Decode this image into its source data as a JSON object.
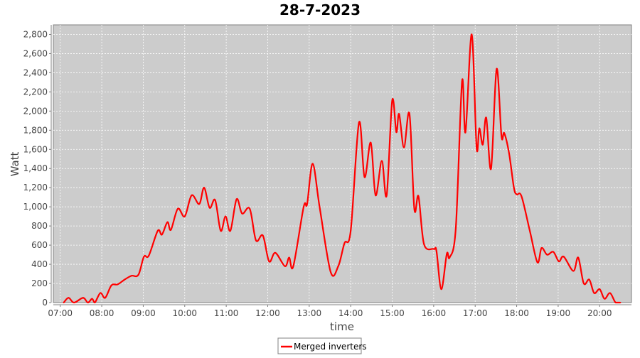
{
  "chart_data": {
    "type": "line",
    "title": "28-7-2023",
    "xlabel": "time",
    "ylabel": "Watt",
    "xlim": [
      "06:50",
      "20:46"
    ],
    "ylim": [
      0,
      2900
    ],
    "x_ticks": [
      "07:00",
      "08:00",
      "09:00",
      "10:00",
      "11:00",
      "12:00",
      "13:00",
      "14:00",
      "15:00",
      "16:00",
      "17:00",
      "18:00",
      "19:00",
      "20:00"
    ],
    "y_ticks": [
      0,
      200,
      400,
      600,
      800,
      1000,
      1200,
      1400,
      1600,
      1800,
      2000,
      2200,
      2400,
      2600,
      2800
    ],
    "y_tick_labels": [
      "0",
      "200",
      "400",
      "600",
      "800",
      "1,000",
      "1,200",
      "1,400",
      "1,600",
      "1,800",
      "2,000",
      "2,200",
      "2,400",
      "2,600",
      "2,800"
    ],
    "grid": true,
    "legend_position": "bottom",
    "background_color": "#cccccc",
    "series": [
      {
        "name": "Merged inverters",
        "color": "#ff0000",
        "points": [
          [
            "07:05",
            0
          ],
          [
            "07:12",
            50
          ],
          [
            "07:20",
            0
          ],
          [
            "07:33",
            50
          ],
          [
            "07:40",
            0
          ],
          [
            "07:46",
            40
          ],
          [
            "07:50",
            0
          ],
          [
            "07:58",
            100
          ],
          [
            "08:05",
            50
          ],
          [
            "08:14",
            180
          ],
          [
            "08:23",
            190
          ],
          [
            "08:33",
            240
          ],
          [
            "08:43",
            280
          ],
          [
            "08:53",
            290
          ],
          [
            "09:01",
            480
          ],
          [
            "09:08",
            490
          ],
          [
            "09:21",
            750
          ],
          [
            "09:27",
            710
          ],
          [
            "09:35",
            840
          ],
          [
            "09:40",
            760
          ],
          [
            "09:50",
            980
          ],
          [
            "10:00",
            900
          ],
          [
            "10:10",
            1120
          ],
          [
            "10:21",
            1030
          ],
          [
            "10:28",
            1200
          ],
          [
            "10:36",
            990
          ],
          [
            "10:44",
            1070
          ],
          [
            "10:52",
            750
          ],
          [
            "10:59",
            900
          ],
          [
            "11:06",
            750
          ],
          [
            "11:15",
            1080
          ],
          [
            "11:23",
            930
          ],
          [
            "11:34",
            980
          ],
          [
            "11:43",
            650
          ],
          [
            "11:53",
            700
          ],
          [
            "12:02",
            430
          ],
          [
            "12:11",
            520
          ],
          [
            "12:25",
            380
          ],
          [
            "12:31",
            470
          ],
          [
            "12:37",
            380
          ],
          [
            "12:52",
            1000
          ],
          [
            "12:57",
            1030
          ],
          [
            "13:05",
            1450
          ],
          [
            "13:15",
            1000
          ],
          [
            "13:31",
            320
          ],
          [
            "13:42",
            380
          ],
          [
            "13:51",
            620
          ],
          [
            "14:00",
            750
          ],
          [
            "14:12",
            1880
          ],
          [
            "14:20",
            1310
          ],
          [
            "14:29",
            1670
          ],
          [
            "14:36",
            1120
          ],
          [
            "14:45",
            1480
          ],
          [
            "14:52",
            1120
          ],
          [
            "15:00",
            2110
          ],
          [
            "15:06",
            1780
          ],
          [
            "15:10",
            1970
          ],
          [
            "15:17",
            1620
          ],
          [
            "15:25",
            1970
          ],
          [
            "15:32",
            980
          ],
          [
            "15:38",
            1110
          ],
          [
            "15:46",
            610
          ],
          [
            "16:00",
            560
          ],
          [
            "16:04",
            540
          ],
          [
            "16:11",
            140
          ],
          [
            "16:19",
            510
          ],
          [
            "16:23",
            470
          ],
          [
            "16:32",
            780
          ],
          [
            "16:41",
            2310
          ],
          [
            "16:46",
            1780
          ],
          [
            "16:55",
            2800
          ],
          [
            "17:02",
            1620
          ],
          [
            "17:06",
            1820
          ],
          [
            "17:11",
            1650
          ],
          [
            "17:16",
            1930
          ],
          [
            "17:23",
            1400
          ],
          [
            "17:31",
            2440
          ],
          [
            "17:38",
            1740
          ],
          [
            "17:42",
            1770
          ],
          [
            "17:49",
            1560
          ],
          [
            "17:56",
            1200
          ],
          [
            "18:00",
            1130
          ],
          [
            "18:07",
            1110
          ],
          [
            "18:19",
            750
          ],
          [
            "18:30",
            420
          ],
          [
            "18:36",
            570
          ],
          [
            "18:44",
            500
          ],
          [
            "18:53",
            530
          ],
          [
            "19:01",
            430
          ],
          [
            "19:08",
            480
          ],
          [
            "19:22",
            330
          ],
          [
            "19:29",
            470
          ],
          [
            "19:37",
            200
          ],
          [
            "19:45",
            240
          ],
          [
            "19:52",
            100
          ],
          [
            "20:00",
            140
          ],
          [
            "20:07",
            40
          ],
          [
            "20:15",
            100
          ],
          [
            "20:23",
            0
          ],
          [
            "20:30",
            0
          ]
        ]
      }
    ]
  }
}
